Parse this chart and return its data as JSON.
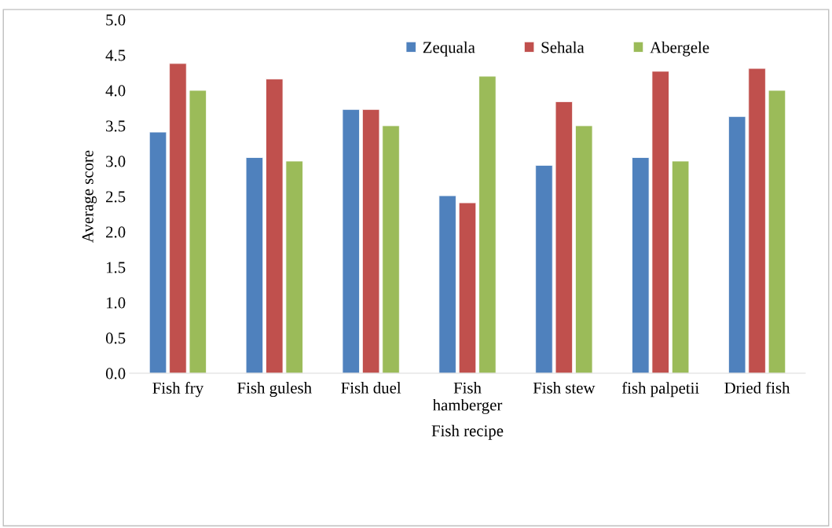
{
  "chart_data": {
    "type": "bar",
    "xlabel": "Fish recipe",
    "ylabel": "Average score",
    "categories": [
      "Fish fry",
      "Fish gulesh",
      "Fish duel",
      "Fish\nhamberger",
      "Fish stew",
      "fish palpetii",
      "Dried fish"
    ],
    "series": [
      {
        "name": "Zequala",
        "color": "#4f81bd",
        "values": [
          3.41,
          3.05,
          3.73,
          2.51,
          2.94,
          3.05,
          3.63
        ]
      },
      {
        "name": "Sehala",
        "color": "#c0504d",
        "values": [
          4.38,
          4.16,
          3.73,
          2.41,
          3.84,
          4.27,
          4.31
        ]
      },
      {
        "name": "Abergele",
        "color": "#9bbb59",
        "values": [
          4.0,
          3.0,
          3.5,
          4.2,
          3.5,
          3.0,
          4.0
        ]
      }
    ],
    "ylim": [
      0,
      5
    ],
    "yticks": [
      {
        "value": 0,
        "label": "0.0"
      },
      {
        "value": 0.5,
        "label": "0.5"
      },
      {
        "value": 1,
        "label": "1.0"
      },
      {
        "value": 1.5,
        "label": "1.5"
      },
      {
        "value": 2,
        "label": "2.0"
      },
      {
        "value": 2.5,
        "label": "2.5"
      },
      {
        "value": 3,
        "label": "3.0"
      },
      {
        "value": 3.5,
        "label": "3.5"
      },
      {
        "value": 4,
        "label": "4.0"
      },
      {
        "value": 4.5,
        "label": "4.5"
      },
      {
        "value": 5,
        "label": "5.0"
      }
    ],
    "grid": false,
    "legend": "top right"
  }
}
